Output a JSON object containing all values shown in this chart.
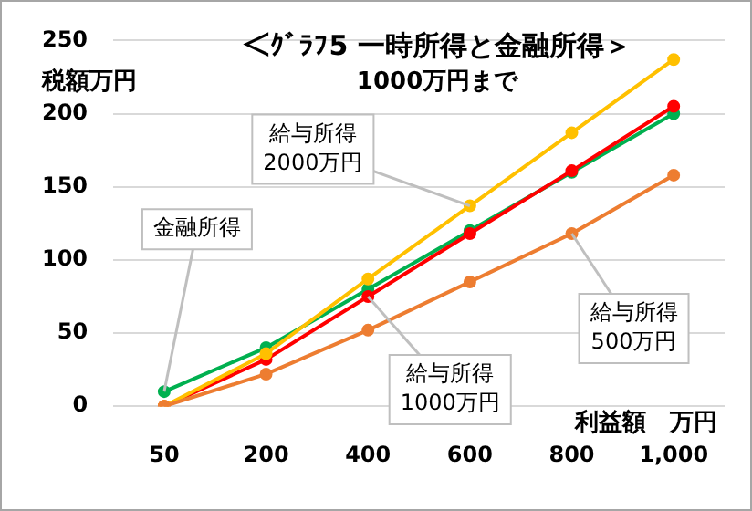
{
  "chart_data": {
    "type": "line",
    "title": "＜ｸﾞﾗﾌ5 一時所得と金融所得＞",
    "subtitle": "1000万円まで",
    "ylabel": "税額万円",
    "xlabel": "利益額　万円",
    "categories": [
      "50",
      "200",
      "400",
      "600",
      "800",
      "1,000"
    ],
    "series": [
      {
        "color": "#ed7d31",
        "values": [
          0,
          22,
          52,
          85,
          118,
          158
        ]
      },
      {
        "color": "#ffc000",
        "values": [
          0,
          36,
          87,
          137,
          187,
          237
        ]
      },
      {
        "color": "#ff0000",
        "values": [
          0,
          32,
          75,
          118,
          161,
          205
        ]
      },
      {
        "color": "#00b050",
        "values": [
          10,
          40,
          80,
          120,
          160,
          200
        ]
      }
    ],
    "ylim": [
      0,
      250
    ],
    "yticks": [
      0,
      50,
      100,
      150,
      200,
      250
    ],
    "grid": "y",
    "legend": false,
    "marker": "circle",
    "line_style": "solid",
    "annotations": [
      {
        "text": "金融所得",
        "x": "50",
        "y": 10
      },
      {
        "text": "給与所得\n2000万円",
        "x": "600",
        "y": 137
      },
      {
        "text": "給与所得\n1000万円",
        "x": "400",
        "y": 75
      },
      {
        "text": "給与所得\n500万円",
        "x": "800",
        "y": 118
      }
    ]
  }
}
